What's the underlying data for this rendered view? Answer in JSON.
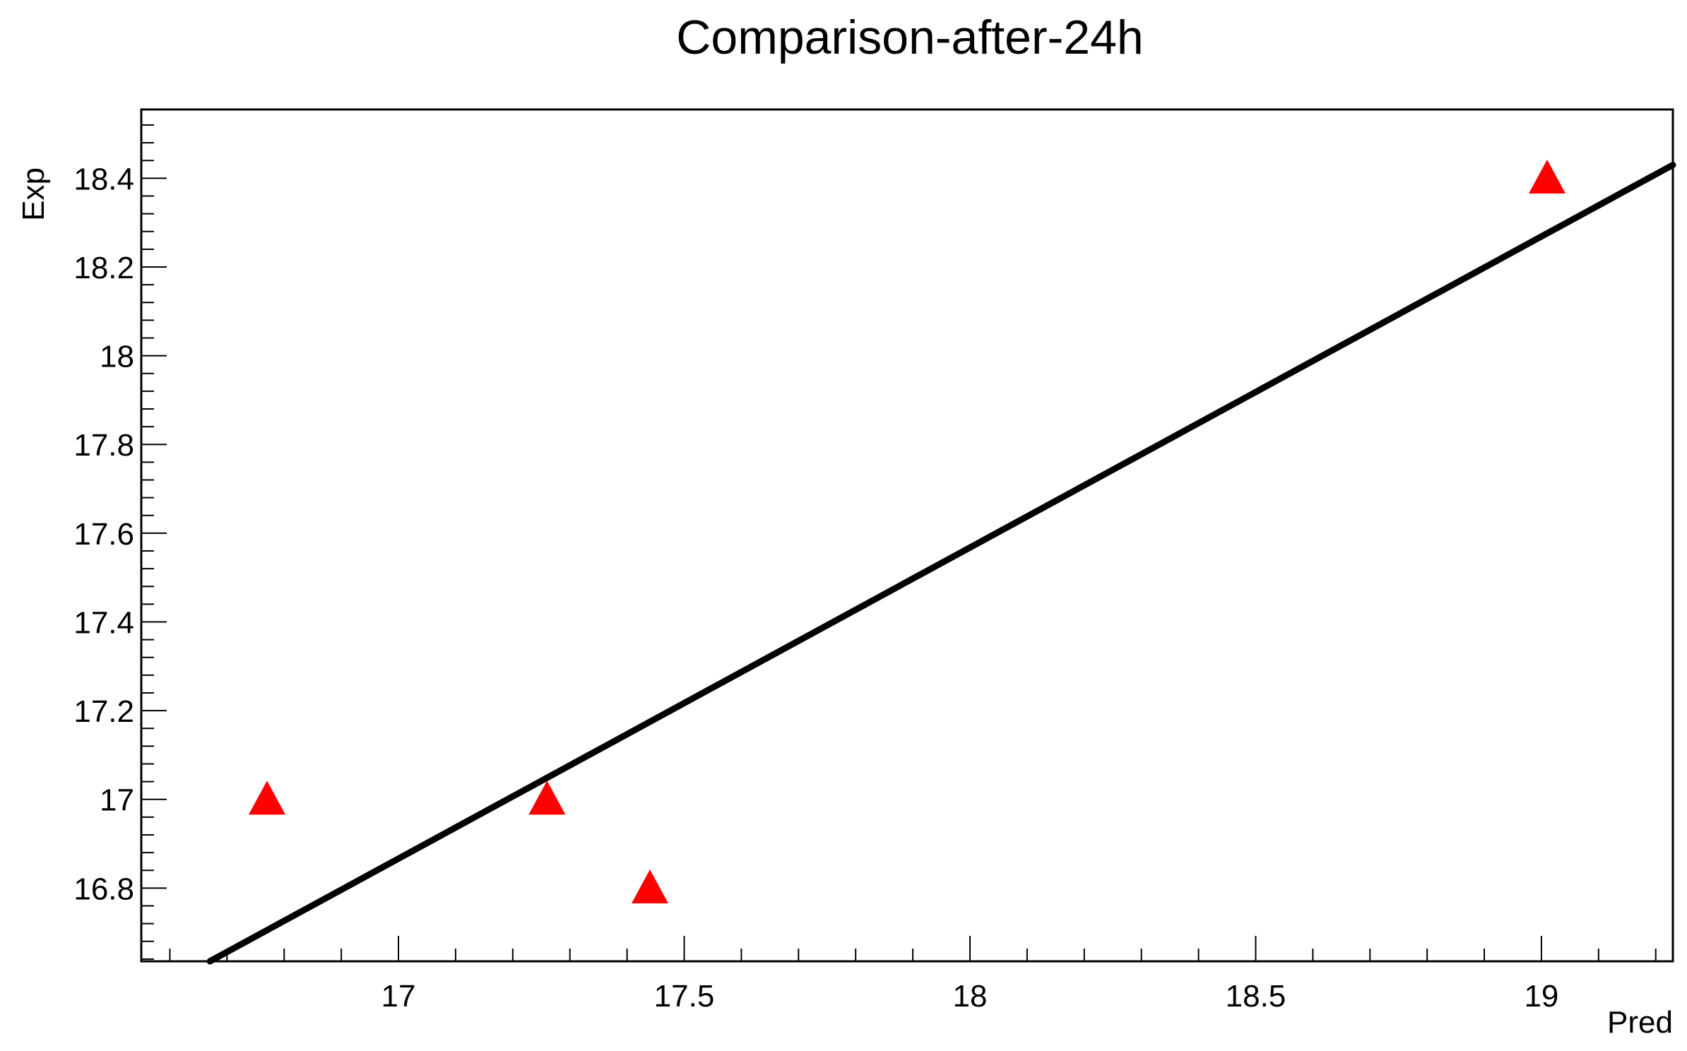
{
  "chart_data": {
    "type": "scatter",
    "title": "Comparison-after-24h",
    "xlabel": "Pred",
    "ylabel": "Exp",
    "xlim": [
      16.55,
      19.23
    ],
    "ylim": [
      16.635,
      18.555
    ],
    "x_ticks": [
      "17",
      "17.5",
      "18",
      "18.5",
      "19"
    ],
    "y_ticks": [
      "16.8",
      "17",
      "17.2",
      "17.4",
      "17.6",
      "17.8",
      "18",
      "18.2",
      "18.4"
    ],
    "grid": false,
    "series": [
      {
        "marker": "triangle",
        "color": "#ff0000",
        "points": [
          {
            "x": 16.77,
            "y": 17.0
          },
          {
            "x": 17.26,
            "y": 17.0
          },
          {
            "x": 17.44,
            "y": 16.8
          },
          {
            "x": 19.01,
            "y": 18.4
          }
        ]
      }
    ],
    "fit_line": {
      "color": "#000000",
      "points": [
        {
          "x": 16.67,
          "y": 16.635
        },
        {
          "x": 19.23,
          "y": 18.43
        }
      ]
    }
  }
}
